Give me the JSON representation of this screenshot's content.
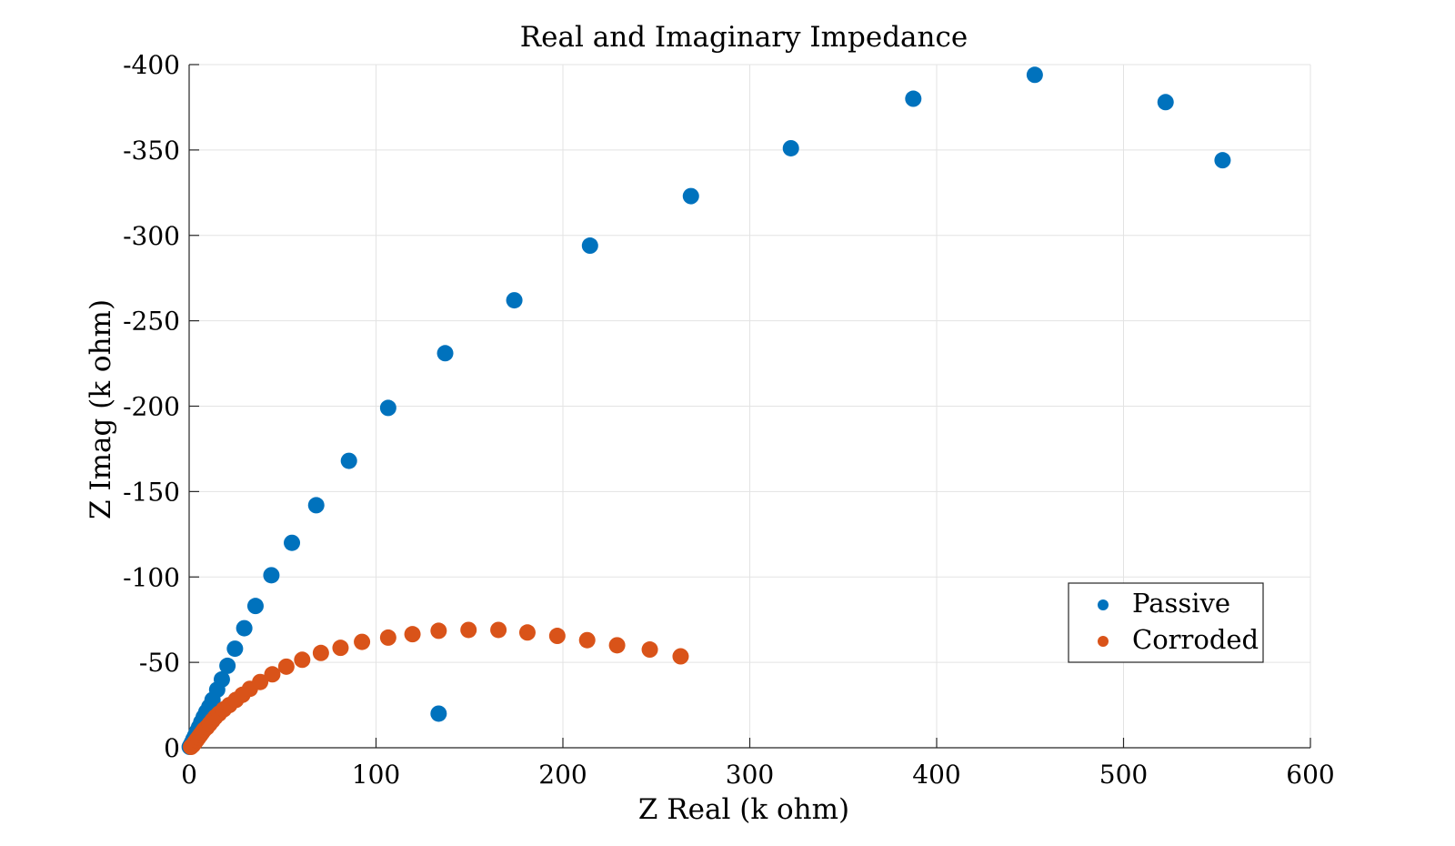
{
  "chart_data": {
    "type": "scatter",
    "title": "Real and Imaginary Impedance",
    "xlabel": "Z Real (k ohm)",
    "ylabel": "Z Imag (k ohm)",
    "xlim": [
      0,
      600
    ],
    "ylim": [
      0,
      -400
    ],
    "x_ticks": [
      0,
      100,
      200,
      300,
      400,
      500,
      600
    ],
    "y_ticks": [
      0,
      -50,
      -100,
      -150,
      -200,
      -250,
      -300,
      -350,
      -400
    ],
    "grid": true,
    "legend_position": "bottom-right",
    "series": [
      {
        "name": "Passive",
        "color": "#0072BD",
        "points": [
          [
            0.3,
            -0.5
          ],
          [
            0.8,
            -1.5
          ],
          [
            1.5,
            -3
          ],
          [
            2.3,
            -5
          ],
          [
            3.2,
            -7
          ],
          [
            4.2,
            -9.5
          ],
          [
            5.3,
            -12
          ],
          [
            6.5,
            -15
          ],
          [
            7.8,
            -18
          ],
          [
            9.2,
            -21
          ],
          [
            10.8,
            -24
          ],
          [
            12.5,
            -28
          ],
          [
            15,
            -34
          ],
          [
            17.5,
            -40
          ],
          [
            20.5,
            -48
          ],
          [
            24.5,
            -58
          ],
          [
            29.5,
            -70
          ],
          [
            35.5,
            -83
          ],
          [
            44,
            -101
          ],
          [
            55,
            -120
          ],
          [
            68,
            -142
          ],
          [
            85.5,
            -168
          ],
          [
            106.5,
            -199
          ],
          [
            137,
            -231
          ],
          [
            174,
            -262
          ],
          [
            214.5,
            -294
          ],
          [
            268.5,
            -323
          ],
          [
            322,
            -351
          ],
          [
            387.5,
            -380
          ],
          [
            452.5,
            -394
          ],
          [
            522.5,
            -378
          ],
          [
            553,
            -344
          ],
          [
            133.5,
            -20
          ]
        ]
      },
      {
        "name": "Corroded",
        "color": "#D95319",
        "points": [
          [
            1,
            -0.5
          ],
          [
            2,
            -1.5
          ],
          [
            3,
            -3
          ],
          [
            4,
            -4.5
          ],
          [
            5,
            -6
          ],
          [
            6,
            -7.5
          ],
          [
            7,
            -9
          ],
          [
            8,
            -10.5
          ],
          [
            9.5,
            -12
          ],
          [
            11,
            -14
          ],
          [
            12.5,
            -16
          ],
          [
            14,
            -18
          ],
          [
            16,
            -20
          ],
          [
            18.5,
            -22.5
          ],
          [
            21.5,
            -25
          ],
          [
            25,
            -28
          ],
          [
            28.5,
            -31
          ],
          [
            32.5,
            -34.5
          ],
          [
            38,
            -38.5
          ],
          [
            44.5,
            -43
          ],
          [
            52,
            -47.5
          ],
          [
            60.5,
            -51.5
          ],
          [
            70.5,
            -55.5
          ],
          [
            81,
            -58.5
          ],
          [
            92.5,
            -62
          ],
          [
            106.5,
            -64.5
          ],
          [
            119.5,
            -66.5
          ],
          [
            133.5,
            -68.5
          ],
          [
            149.5,
            -69
          ],
          [
            165.5,
            -69
          ],
          [
            181,
            -67.5
          ],
          [
            197,
            -65.5
          ],
          [
            213,
            -63
          ],
          [
            229,
            -60
          ],
          [
            246.5,
            -57.5
          ],
          [
            263,
            -53.5
          ]
        ]
      }
    ]
  }
}
